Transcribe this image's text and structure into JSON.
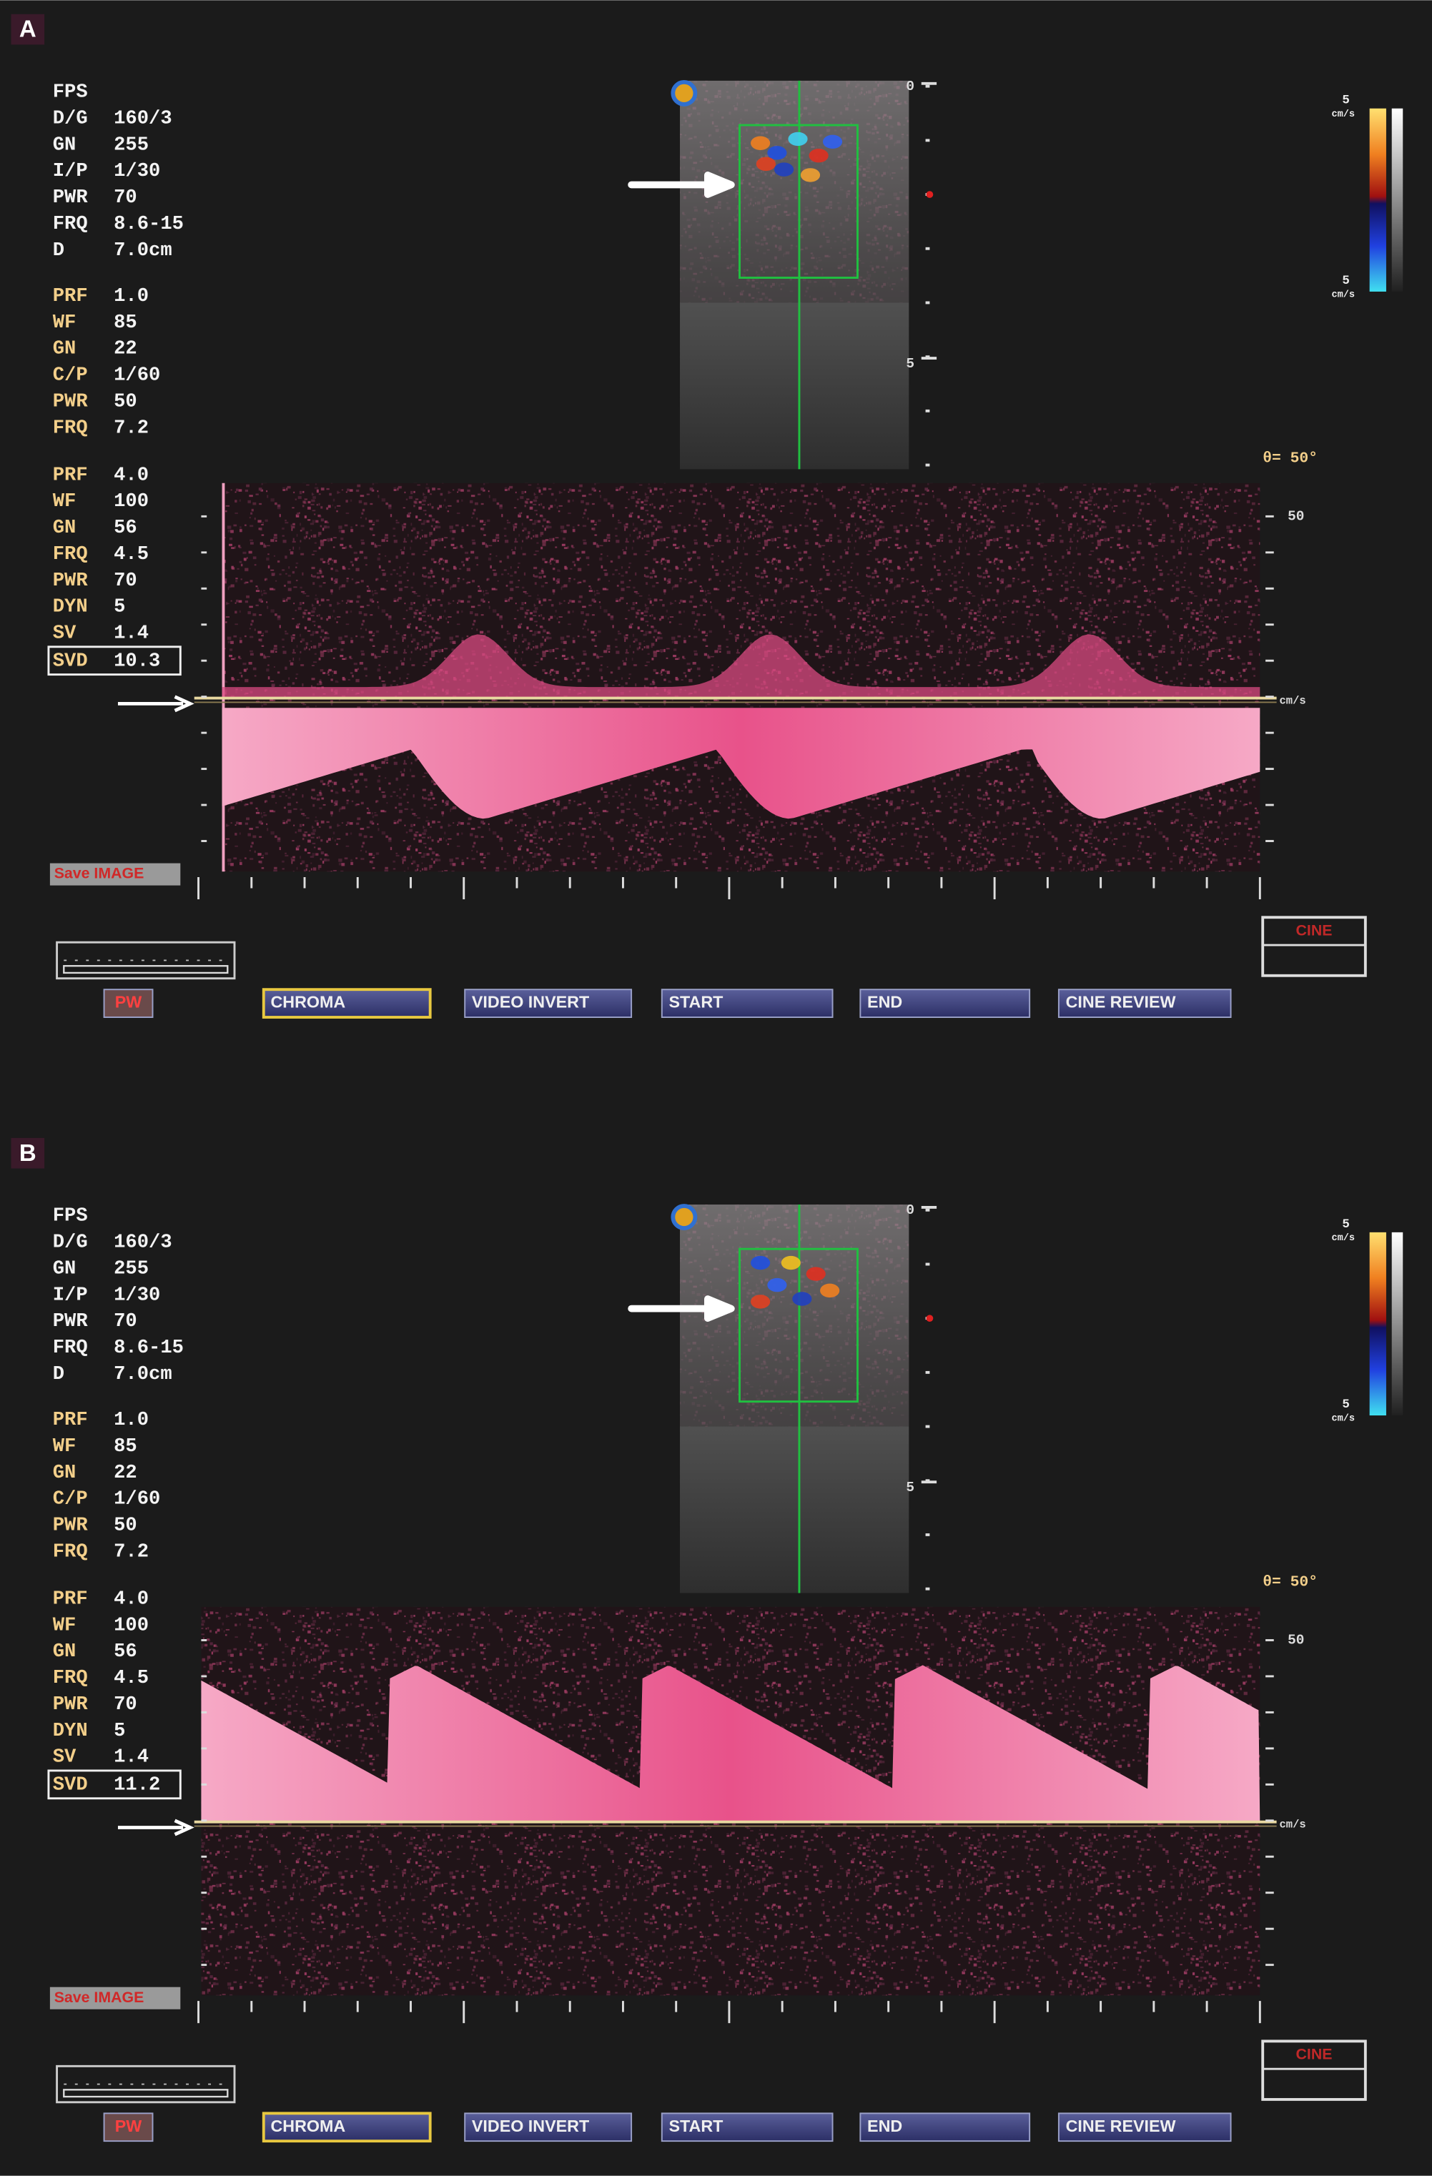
{
  "panels": [
    {
      "label": "A",
      "bmode_params": [
        {
          "key": "FPS"
        },
        {
          "key": "D/G",
          "value": "160/3"
        },
        {
          "key": "GN",
          "value": "255"
        },
        {
          "key": "I/P",
          "value": "1/30"
        },
        {
          "key": "PWR",
          "value": "70"
        },
        {
          "key": "FRQ",
          "value": "8.6-15"
        },
        {
          "key": "D",
          "value": "7.0cm"
        }
      ],
      "color_params": [
        {
          "key": "PRF",
          "value": "1.0"
        },
        {
          "key": "WF",
          "value": "85"
        },
        {
          "key": "GN",
          "value": "22"
        },
        {
          "key": "C/P",
          "value": "1/60"
        },
        {
          "key": "PWR",
          "value": "50"
        },
        {
          "key": "FRQ",
          "value": "7.2"
        }
      ],
      "doppler_params": [
        {
          "key": "PRF",
          "value": "4.0"
        },
        {
          "key": "WF",
          "value": "100"
        },
        {
          "key": "GN",
          "value": "56"
        },
        {
          "key": "FRQ",
          "value": "4.5"
        },
        {
          "key": "PWR",
          "value": "70"
        },
        {
          "key": "DYN",
          "value": "5"
        },
        {
          "key": "SV",
          "value": "1.4"
        }
      ],
      "svd": {
        "key": "SVD",
        "value": "10.3"
      },
      "depth_marks": [
        "0",
        "5"
      ],
      "color_scale": {
        "top": "5",
        "top_unit": "cm/s",
        "bottom": "5",
        "bottom_unit": "cm/s"
      },
      "angle": "θ= 50°",
      "velocity_mark": "50",
      "velocity_unit": "cm/s",
      "save_button": "Save IMAGE",
      "cine": "CINE",
      "buttons": [
        "PW",
        "CHROMA",
        "VIDEO INVERT",
        "START",
        "END",
        "CINE REVIEW"
      ]
    },
    {
      "label": "B",
      "bmode_params": [
        {
          "key": "FPS"
        },
        {
          "key": "D/G",
          "value": "160/3"
        },
        {
          "key": "GN",
          "value": "255"
        },
        {
          "key": "I/P",
          "value": "1/30"
        },
        {
          "key": "PWR",
          "value": "70"
        },
        {
          "key": "FRQ",
          "value": "8.6-15"
        },
        {
          "key": "D",
          "value": "7.0cm"
        }
      ],
      "color_params": [
        {
          "key": "PRF",
          "value": "1.0"
        },
        {
          "key": "WF",
          "value": "85"
        },
        {
          "key": "GN",
          "value": "22"
        },
        {
          "key": "C/P",
          "value": "1/60"
        },
        {
          "key": "PWR",
          "value": "50"
        },
        {
          "key": "FRQ",
          "value": "7.2"
        }
      ],
      "doppler_params": [
        {
          "key": "PRF",
          "value": "4.0"
        },
        {
          "key": "WF",
          "value": "100"
        },
        {
          "key": "GN",
          "value": "56"
        },
        {
          "key": "FRQ",
          "value": "4.5"
        },
        {
          "key": "PWR",
          "value": "70"
        },
        {
          "key": "DYN",
          "value": "5"
        },
        {
          "key": "SV",
          "value": "1.4"
        }
      ],
      "svd": {
        "key": "SVD",
        "value": "11.2"
      },
      "depth_marks": [
        "0",
        "5"
      ],
      "color_scale": {
        "top": "5",
        "top_unit": "cm/s",
        "bottom": "5",
        "bottom_unit": "cm/s"
      },
      "angle": "θ= 50°",
      "velocity_mark": "50",
      "velocity_unit": "cm/s",
      "save_button": "Save IMAGE",
      "cine": "CINE",
      "buttons": [
        "PW",
        "CHROMA",
        "VIDEO INVERT",
        "START",
        "END",
        "CINE REVIEW"
      ]
    }
  ]
}
